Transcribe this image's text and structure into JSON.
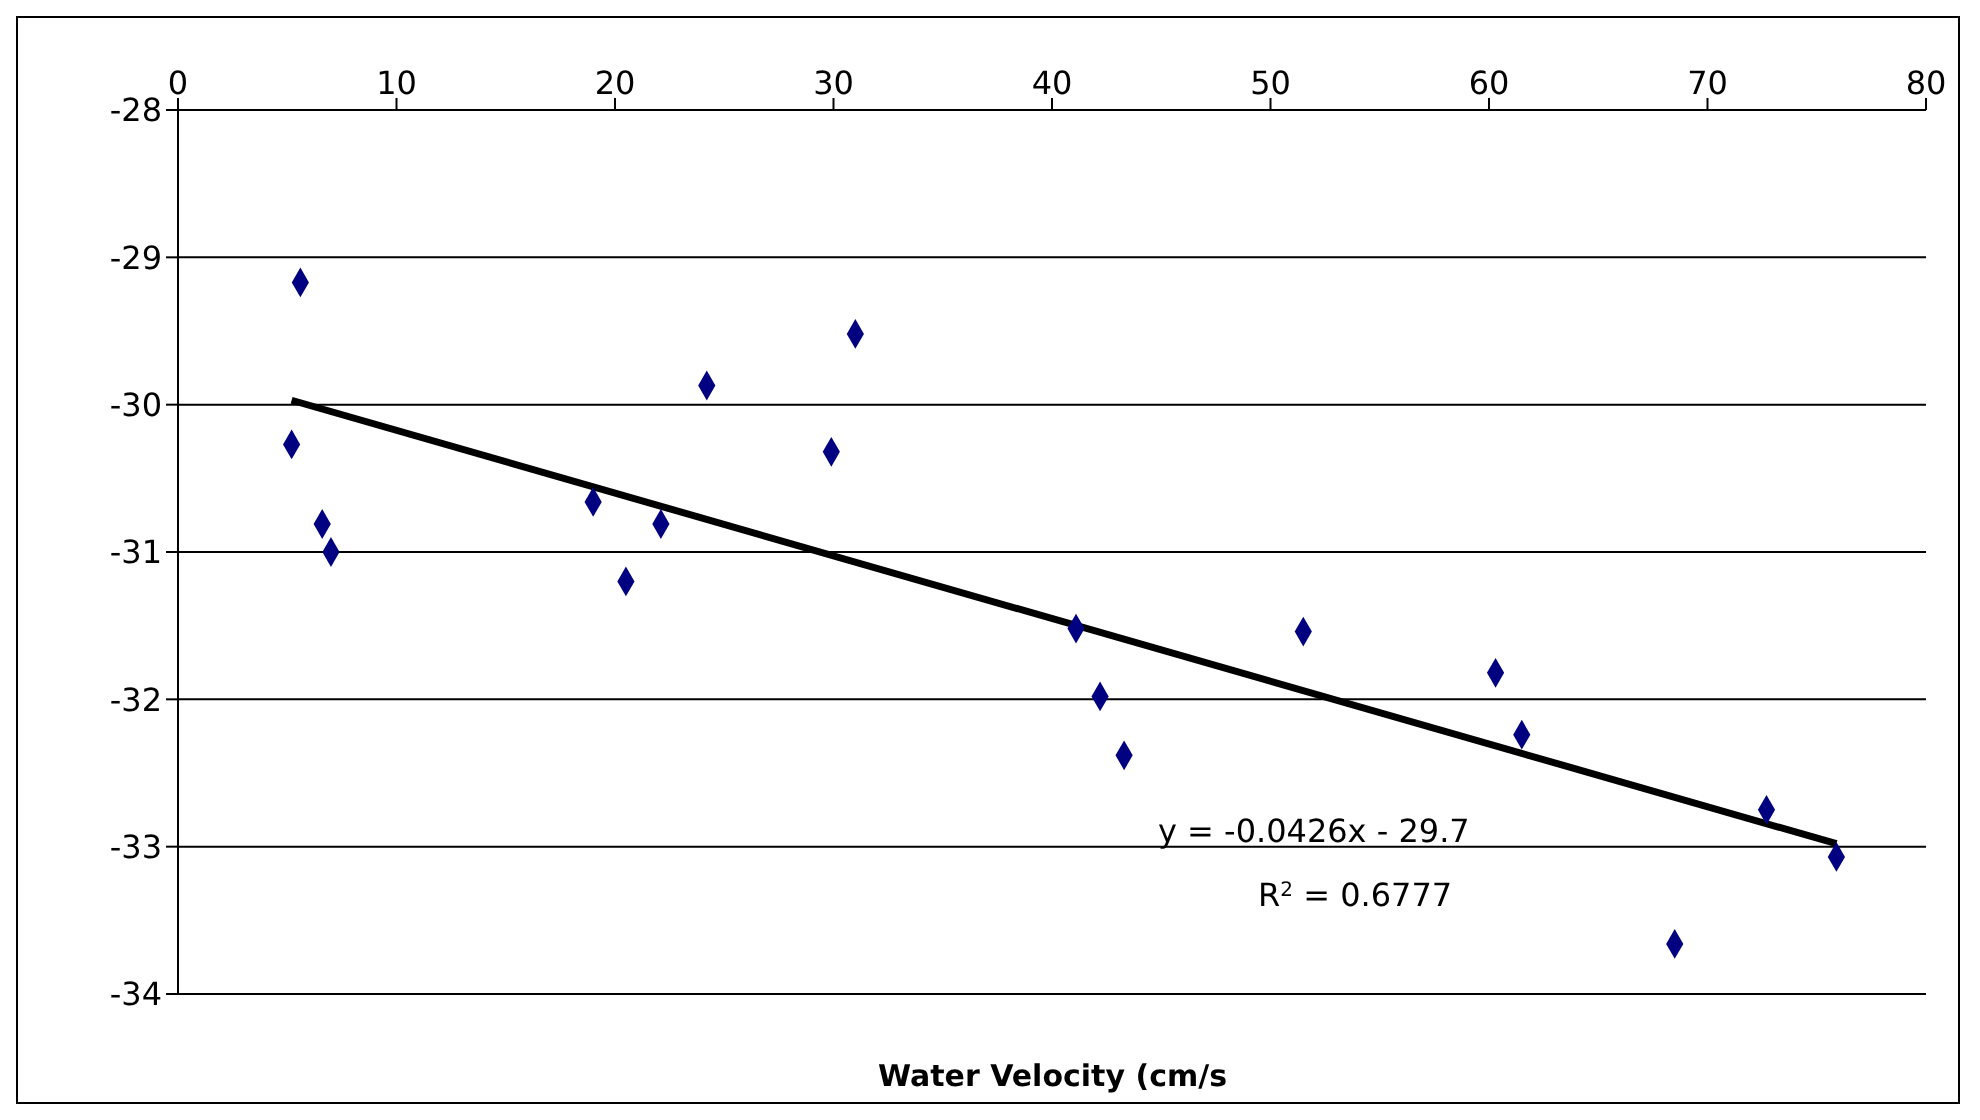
{
  "chart_data": {
    "type": "scatter",
    "xlabel": "Water Velocity (cm/s",
    "xlim": [
      0,
      80
    ],
    "xticks": [
      0,
      10,
      20,
      30,
      40,
      50,
      60,
      70,
      80
    ],
    "ylim": [
      -34,
      -28
    ],
    "yticks": [
      -34,
      -33,
      -32,
      -31,
      -30,
      -29,
      -28
    ],
    "grid": "y",
    "series": [
      {
        "marker": "diamond",
        "color": "#000080",
        "x": [
          5.2,
          5.6,
          6.6,
          7.0,
          19.0,
          20.5,
          22.1,
          24.2,
          29.9,
          31.0,
          41.1,
          42.2,
          43.3,
          51.5,
          60.3,
          61.5,
          68.5,
          72.7,
          75.9
        ],
        "values": [
          -30.27,
          -29.17,
          -30.81,
          -31.0,
          -30.66,
          -31.2,
          -30.81,
          -29.87,
          -30.32,
          -29.52,
          -31.52,
          -31.98,
          -32.38,
          -31.54,
          -31.82,
          -32.24,
          -33.66,
          -32.75,
          -33.07
        ]
      },
      {
        "type": "line",
        "color": "#000000",
        "x": [
          5.2,
          75.9
        ],
        "values": [
          -29.97,
          -32.98
        ]
      }
    ],
    "annotations": [
      "y = -0.0426x - 29.7",
      "R$^{2}$ = 0.6777"
    ]
  }
}
